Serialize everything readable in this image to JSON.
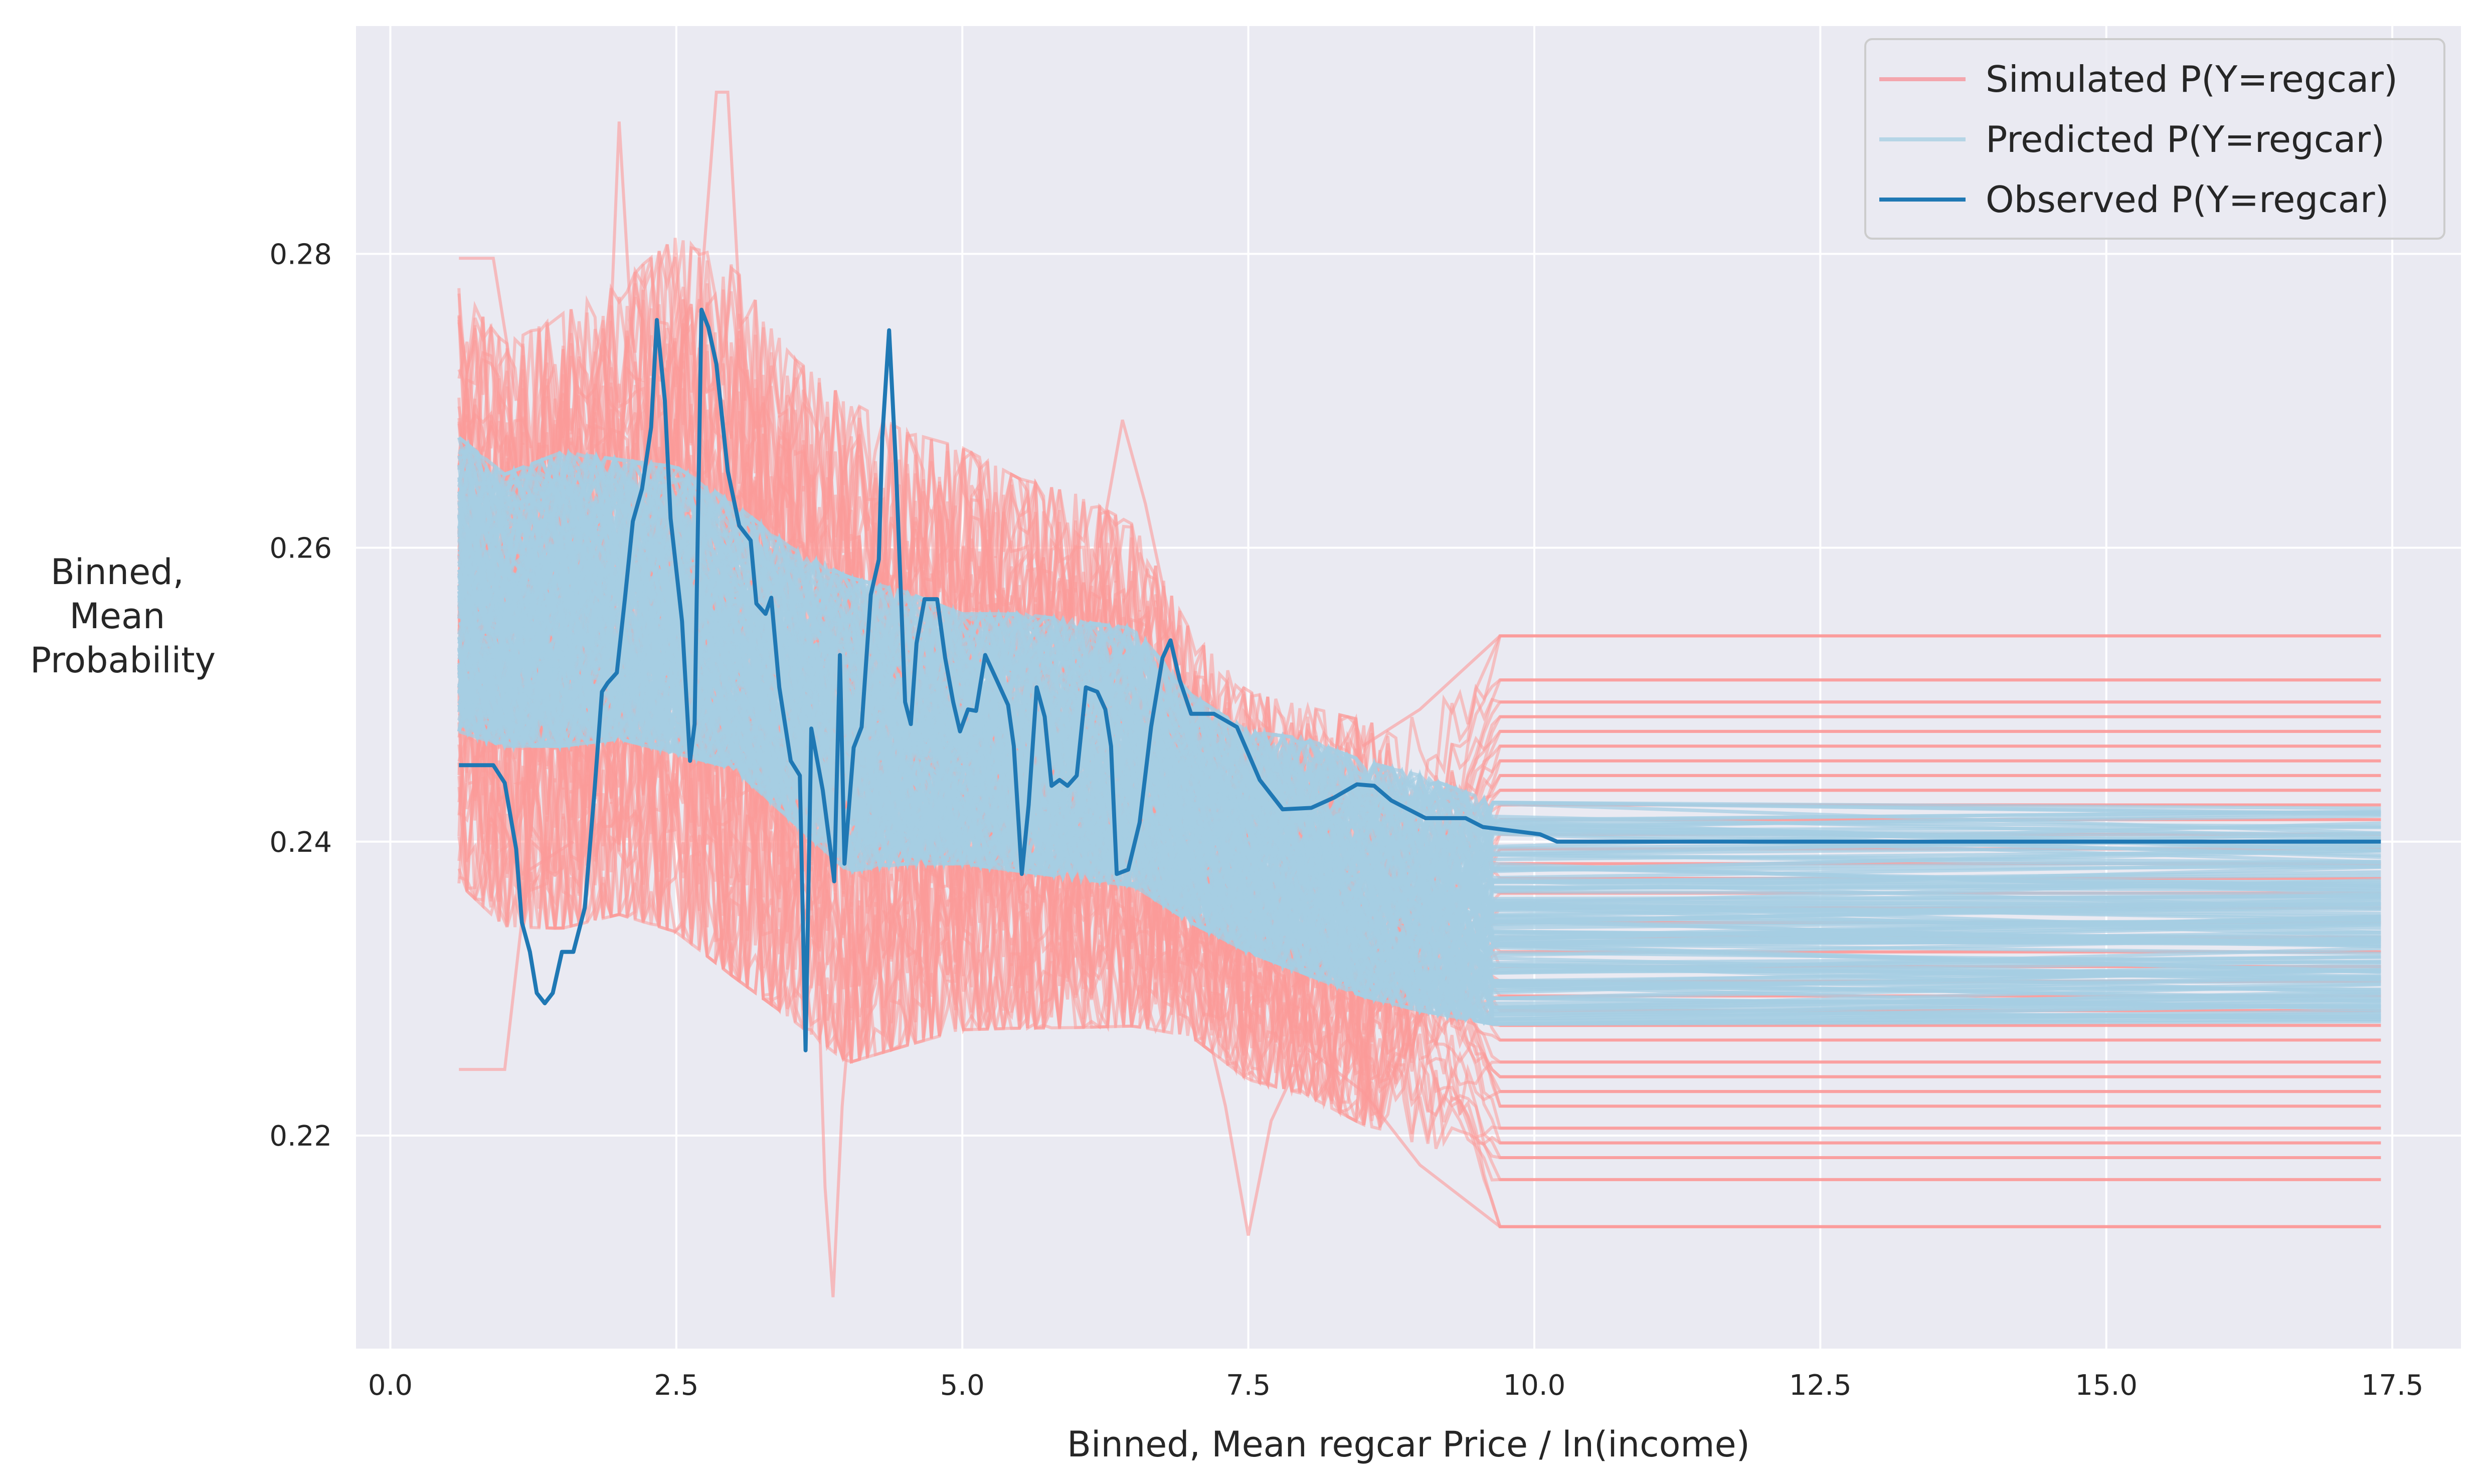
{
  "chart_data": {
    "type": "line",
    "title": "",
    "xlabel": "Binned, Mean regcar Price / ln(income)",
    "ylabel_lines": [
      "Binned,",
      "Mean",
      "Probability"
    ],
    "xlim": [
      -0.3,
      18.1
    ],
    "ylim": [
      0.2055,
      0.2955
    ],
    "x_ticks": [
      0.0,
      2.5,
      5.0,
      7.5,
      10.0,
      12.5,
      15.0,
      17.5
    ],
    "x_tick_labels": [
      "0.0",
      "2.5",
      "5.0",
      "7.5",
      "10.0",
      "12.5",
      "15.0",
      "17.5"
    ],
    "y_ticks": [
      0.22,
      0.24,
      0.26,
      0.28
    ],
    "y_tick_labels": [
      "0.22",
      "0.24",
      "0.26",
      "0.28"
    ],
    "grid": true,
    "legend_position": "top-right",
    "colors": {
      "background": "#eaeaf2",
      "grid": "#ffffff",
      "simulated": "#fb9a99",
      "predicted": "#a6cee3",
      "observed": "#1f78b4"
    },
    "legend": [
      {
        "label": "Simulated P(Y=regcar)",
        "color": "#f4a6ad"
      },
      {
        "label": "Predicted P(Y=regcar)",
        "color": "#b5d5e6"
      },
      {
        "label": "Observed P(Y=regcar)",
        "color": "#1f78b4"
      }
    ],
    "simulated_band": {
      "upper": [
        [
          0.6,
          0.276
        ],
        [
          1.0,
          0.272
        ],
        [
          1.5,
          0.274
        ],
        [
          2.0,
          0.276
        ],
        [
          2.5,
          0.279
        ],
        [
          3.0,
          0.277
        ],
        [
          3.5,
          0.271
        ],
        [
          4.0,
          0.268
        ],
        [
          4.5,
          0.266
        ],
        [
          5.0,
          0.265
        ],
        [
          5.5,
          0.263
        ],
        [
          6.0,
          0.262
        ],
        [
          6.5,
          0.26
        ],
        [
          7.0,
          0.253
        ],
        [
          7.5,
          0.249
        ],
        [
          8.0,
          0.248
        ],
        [
          8.5,
          0.247
        ],
        [
          9.0,
          0.246
        ],
        [
          9.7,
          0.251
        ],
        [
          17.4,
          0.251
        ]
      ],
      "lower": [
        [
          0.6,
          0.239
        ],
        [
          1.0,
          0.236
        ],
        [
          1.5,
          0.236
        ],
        [
          2.0,
          0.237
        ],
        [
          2.5,
          0.236
        ],
        [
          3.0,
          0.233
        ],
        [
          3.5,
          0.23
        ],
        [
          4.0,
          0.227
        ],
        [
          4.5,
          0.228
        ],
        [
          5.0,
          0.229
        ],
        [
          5.5,
          0.229
        ],
        [
          6.0,
          0.229
        ],
        [
          6.5,
          0.229
        ],
        [
          7.0,
          0.228
        ],
        [
          7.5,
          0.225
        ],
        [
          8.0,
          0.224
        ],
        [
          8.5,
          0.222
        ],
        [
          9.0,
          0.221
        ],
        [
          9.7,
          0.218
        ],
        [
          17.4,
          0.218
        ]
      ]
    },
    "simulated_outliers": [
      [
        [
          0.6,
          0.2245
        ],
        [
          1.0,
          0.2245
        ],
        [
          1.2,
          0.238
        ],
        [
          1.6,
          0.24
        ]
      ],
      [
        [
          0.6,
          0.2797
        ],
        [
          0.9,
          0.2797
        ],
        [
          1.1,
          0.27
        ]
      ],
      [
        [
          1.9,
          0.27
        ],
        [
          2.0,
          0.289
        ],
        [
          2.1,
          0.276
        ],
        [
          2.2,
          0.268
        ]
      ],
      [
        [
          2.7,
          0.276
        ],
        [
          2.85,
          0.291
        ],
        [
          2.95,
          0.291
        ],
        [
          3.1,
          0.27
        ]
      ],
      [
        [
          3.7,
          0.24
        ],
        [
          3.8,
          0.2165
        ],
        [
          3.87,
          0.209
        ],
        [
          3.95,
          0.222
        ],
        [
          4.1,
          0.236
        ]
      ],
      [
        [
          6.2,
          0.26
        ],
        [
          6.4,
          0.2687
        ],
        [
          6.6,
          0.263
        ],
        [
          6.9,
          0.252
        ]
      ],
      [
        [
          7.0,
          0.232
        ],
        [
          7.3,
          0.222
        ],
        [
          7.5,
          0.2132
        ],
        [
          7.7,
          0.221
        ],
        [
          8.0,
          0.226
        ],
        [
          8.5,
          0.223
        ],
        [
          9.0,
          0.218
        ],
        [
          9.7,
          0.2138
        ],
        [
          17.4,
          0.2138
        ]
      ],
      [
        [
          8.5,
          0.2465
        ],
        [
          9.0,
          0.249
        ],
        [
          9.7,
          0.254
        ],
        [
          17.4,
          0.254
        ]
      ]
    ],
    "simulated_flat_levels": [
      0.2138,
      0.217,
      0.2185,
      0.2195,
      0.2205,
      0.222,
      0.223,
      0.224,
      0.225,
      0.2265,
      0.2275,
      0.2285,
      0.2295,
      0.2305,
      0.2315,
      0.2325,
      0.2335,
      0.2345,
      0.2355,
      0.2365,
      0.2375,
      0.2385,
      0.2395,
      0.2405,
      0.2415,
      0.2425,
      0.2435,
      0.2445,
      0.2455,
      0.2465,
      0.2475,
      0.2485,
      0.2495,
      0.251,
      0.254
    ],
    "predicted_band": {
      "upper": [
        [
          0.6,
          0.2675
        ],
        [
          1.0,
          0.265
        ],
        [
          1.5,
          0.2665
        ],
        [
          2.0,
          0.266
        ],
        [
          2.5,
          0.2655
        ],
        [
          3.0,
          0.263
        ],
        [
          3.5,
          0.26
        ],
        [
          4.0,
          0.258
        ],
        [
          4.5,
          0.257
        ],
        [
          5.0,
          0.2555
        ],
        [
          5.5,
          0.2555
        ],
        [
          6.0,
          0.255
        ],
        [
          6.5,
          0.2545
        ],
        [
          7.0,
          0.25
        ],
        [
          7.5,
          0.2475
        ],
        [
          8.0,
          0.247
        ],
        [
          8.5,
          0.2455
        ],
        [
          9.0,
          0.2445
        ],
        [
          9.7,
          0.2425
        ],
        [
          17.4,
          0.2425
        ]
      ],
      "lower": [
        [
          0.6,
          0.2475
        ],
        [
          1.0,
          0.2465
        ],
        [
          1.5,
          0.2465
        ],
        [
          2.0,
          0.247
        ],
        [
          2.5,
          0.246
        ],
        [
          3.0,
          0.245
        ],
        [
          3.5,
          0.2415
        ],
        [
          4.0,
          0.238
        ],
        [
          4.5,
          0.2385
        ],
        [
          5.0,
          0.2385
        ],
        [
          5.5,
          0.238
        ],
        [
          6.0,
          0.2375
        ],
        [
          6.5,
          0.237
        ],
        [
          7.0,
          0.2345
        ],
        [
          7.5,
          0.2325
        ],
        [
          8.0,
          0.231
        ],
        [
          8.5,
          0.2295
        ],
        [
          9.0,
          0.2285
        ],
        [
          9.7,
          0.2275
        ],
        [
          17.4,
          0.2275
        ]
      ]
    },
    "observed_series": {
      "name": "Observed P(Y=regcar)",
      "points": [
        [
          0.6,
          0.2452
        ],
        [
          0.9,
          0.2452
        ],
        [
          1.0,
          0.244
        ],
        [
          1.1,
          0.2395
        ],
        [
          1.15,
          0.2345
        ],
        [
          1.22,
          0.2325
        ],
        [
          1.28,
          0.2297
        ],
        [
          1.35,
          0.229
        ],
        [
          1.42,
          0.2297
        ],
        [
          1.5,
          0.2325
        ],
        [
          1.6,
          0.2325
        ],
        [
          1.7,
          0.2355
        ],
        [
          1.78,
          0.243
        ],
        [
          1.85,
          0.2502
        ],
        [
          1.9,
          0.2508
        ],
        [
          1.98,
          0.2515
        ],
        [
          2.05,
          0.2565
        ],
        [
          2.12,
          0.2618
        ],
        [
          2.2,
          0.264
        ],
        [
          2.28,
          0.2682
        ],
        [
          2.33,
          0.2755
        ],
        [
          2.4,
          0.27
        ],
        [
          2.45,
          0.262
        ],
        [
          2.55,
          0.255
        ],
        [
          2.62,
          0.2455
        ],
        [
          2.66,
          0.248
        ],
        [
          2.72,
          0.2762
        ],
        [
          2.78,
          0.275
        ],
        [
          2.85,
          0.2725
        ],
        [
          2.95,
          0.2652
        ],
        [
          3.05,
          0.2615
        ],
        [
          3.15,
          0.2605
        ],
        [
          3.2,
          0.2562
        ],
        [
          3.28,
          0.2555
        ],
        [
          3.33,
          0.2566
        ],
        [
          3.4,
          0.2505
        ],
        [
          3.5,
          0.2455
        ],
        [
          3.58,
          0.2445
        ],
        [
          3.63,
          0.2258
        ],
        [
          3.68,
          0.2477
        ],
        [
          3.78,
          0.2435
        ],
        [
          3.85,
          0.2393
        ],
        [
          3.88,
          0.2373
        ],
        [
          3.93,
          0.2527
        ],
        [
          3.97,
          0.2385
        ],
        [
          4.05,
          0.2464
        ],
        [
          4.12,
          0.2478
        ],
        [
          4.2,
          0.2568
        ],
        [
          4.27,
          0.2592
        ],
        [
          4.3,
          0.2675
        ],
        [
          4.36,
          0.2748
        ],
        [
          4.42,
          0.2655
        ],
        [
          4.5,
          0.2495
        ],
        [
          4.55,
          0.248
        ],
        [
          4.6,
          0.2535
        ],
        [
          4.67,
          0.2565
        ],
        [
          4.78,
          0.2565
        ],
        [
          4.85,
          0.2525
        ],
        [
          4.92,
          0.2495
        ],
        [
          4.98,
          0.2475
        ],
        [
          5.05,
          0.249
        ],
        [
          5.12,
          0.2489
        ],
        [
          5.2,
          0.2527
        ],
        [
          5.3,
          0.251
        ],
        [
          5.4,
          0.2493
        ],
        [
          5.45,
          0.2465
        ],
        [
          5.52,
          0.2378
        ],
        [
          5.58,
          0.2425
        ],
        [
          5.65,
          0.2505
        ],
        [
          5.72,
          0.2485
        ],
        [
          5.78,
          0.2438
        ],
        [
          5.85,
          0.2442
        ],
        [
          5.92,
          0.2438
        ],
        [
          6.0,
          0.2445
        ],
        [
          6.08,
          0.2505
        ],
        [
          6.18,
          0.2502
        ],
        [
          6.25,
          0.249
        ],
        [
          6.3,
          0.2465
        ],
        [
          6.35,
          0.2378
        ],
        [
          6.45,
          0.2381
        ],
        [
          6.55,
          0.2413
        ],
        [
          6.65,
          0.2478
        ],
        [
          6.75,
          0.2525
        ],
        [
          6.82,
          0.2537
        ],
        [
          6.9,
          0.251
        ],
        [
          7.0,
          0.2487
        ],
        [
          7.2,
          0.2487
        ],
        [
          7.4,
          0.2478
        ],
        [
          7.6,
          0.2442
        ],
        [
          7.8,
          0.2422
        ],
        [
          8.05,
          0.2423
        ],
        [
          8.25,
          0.243
        ],
        [
          8.45,
          0.2439
        ],
        [
          8.6,
          0.2438
        ],
        [
          8.75,
          0.2428
        ],
        [
          9.05,
          0.2416
        ],
        [
          9.4,
          0.2416
        ],
        [
          9.55,
          0.241
        ],
        [
          10.05,
          0.2405
        ],
        [
          10.2,
          0.24
        ],
        [
          17.4,
          0.24
        ]
      ]
    }
  }
}
